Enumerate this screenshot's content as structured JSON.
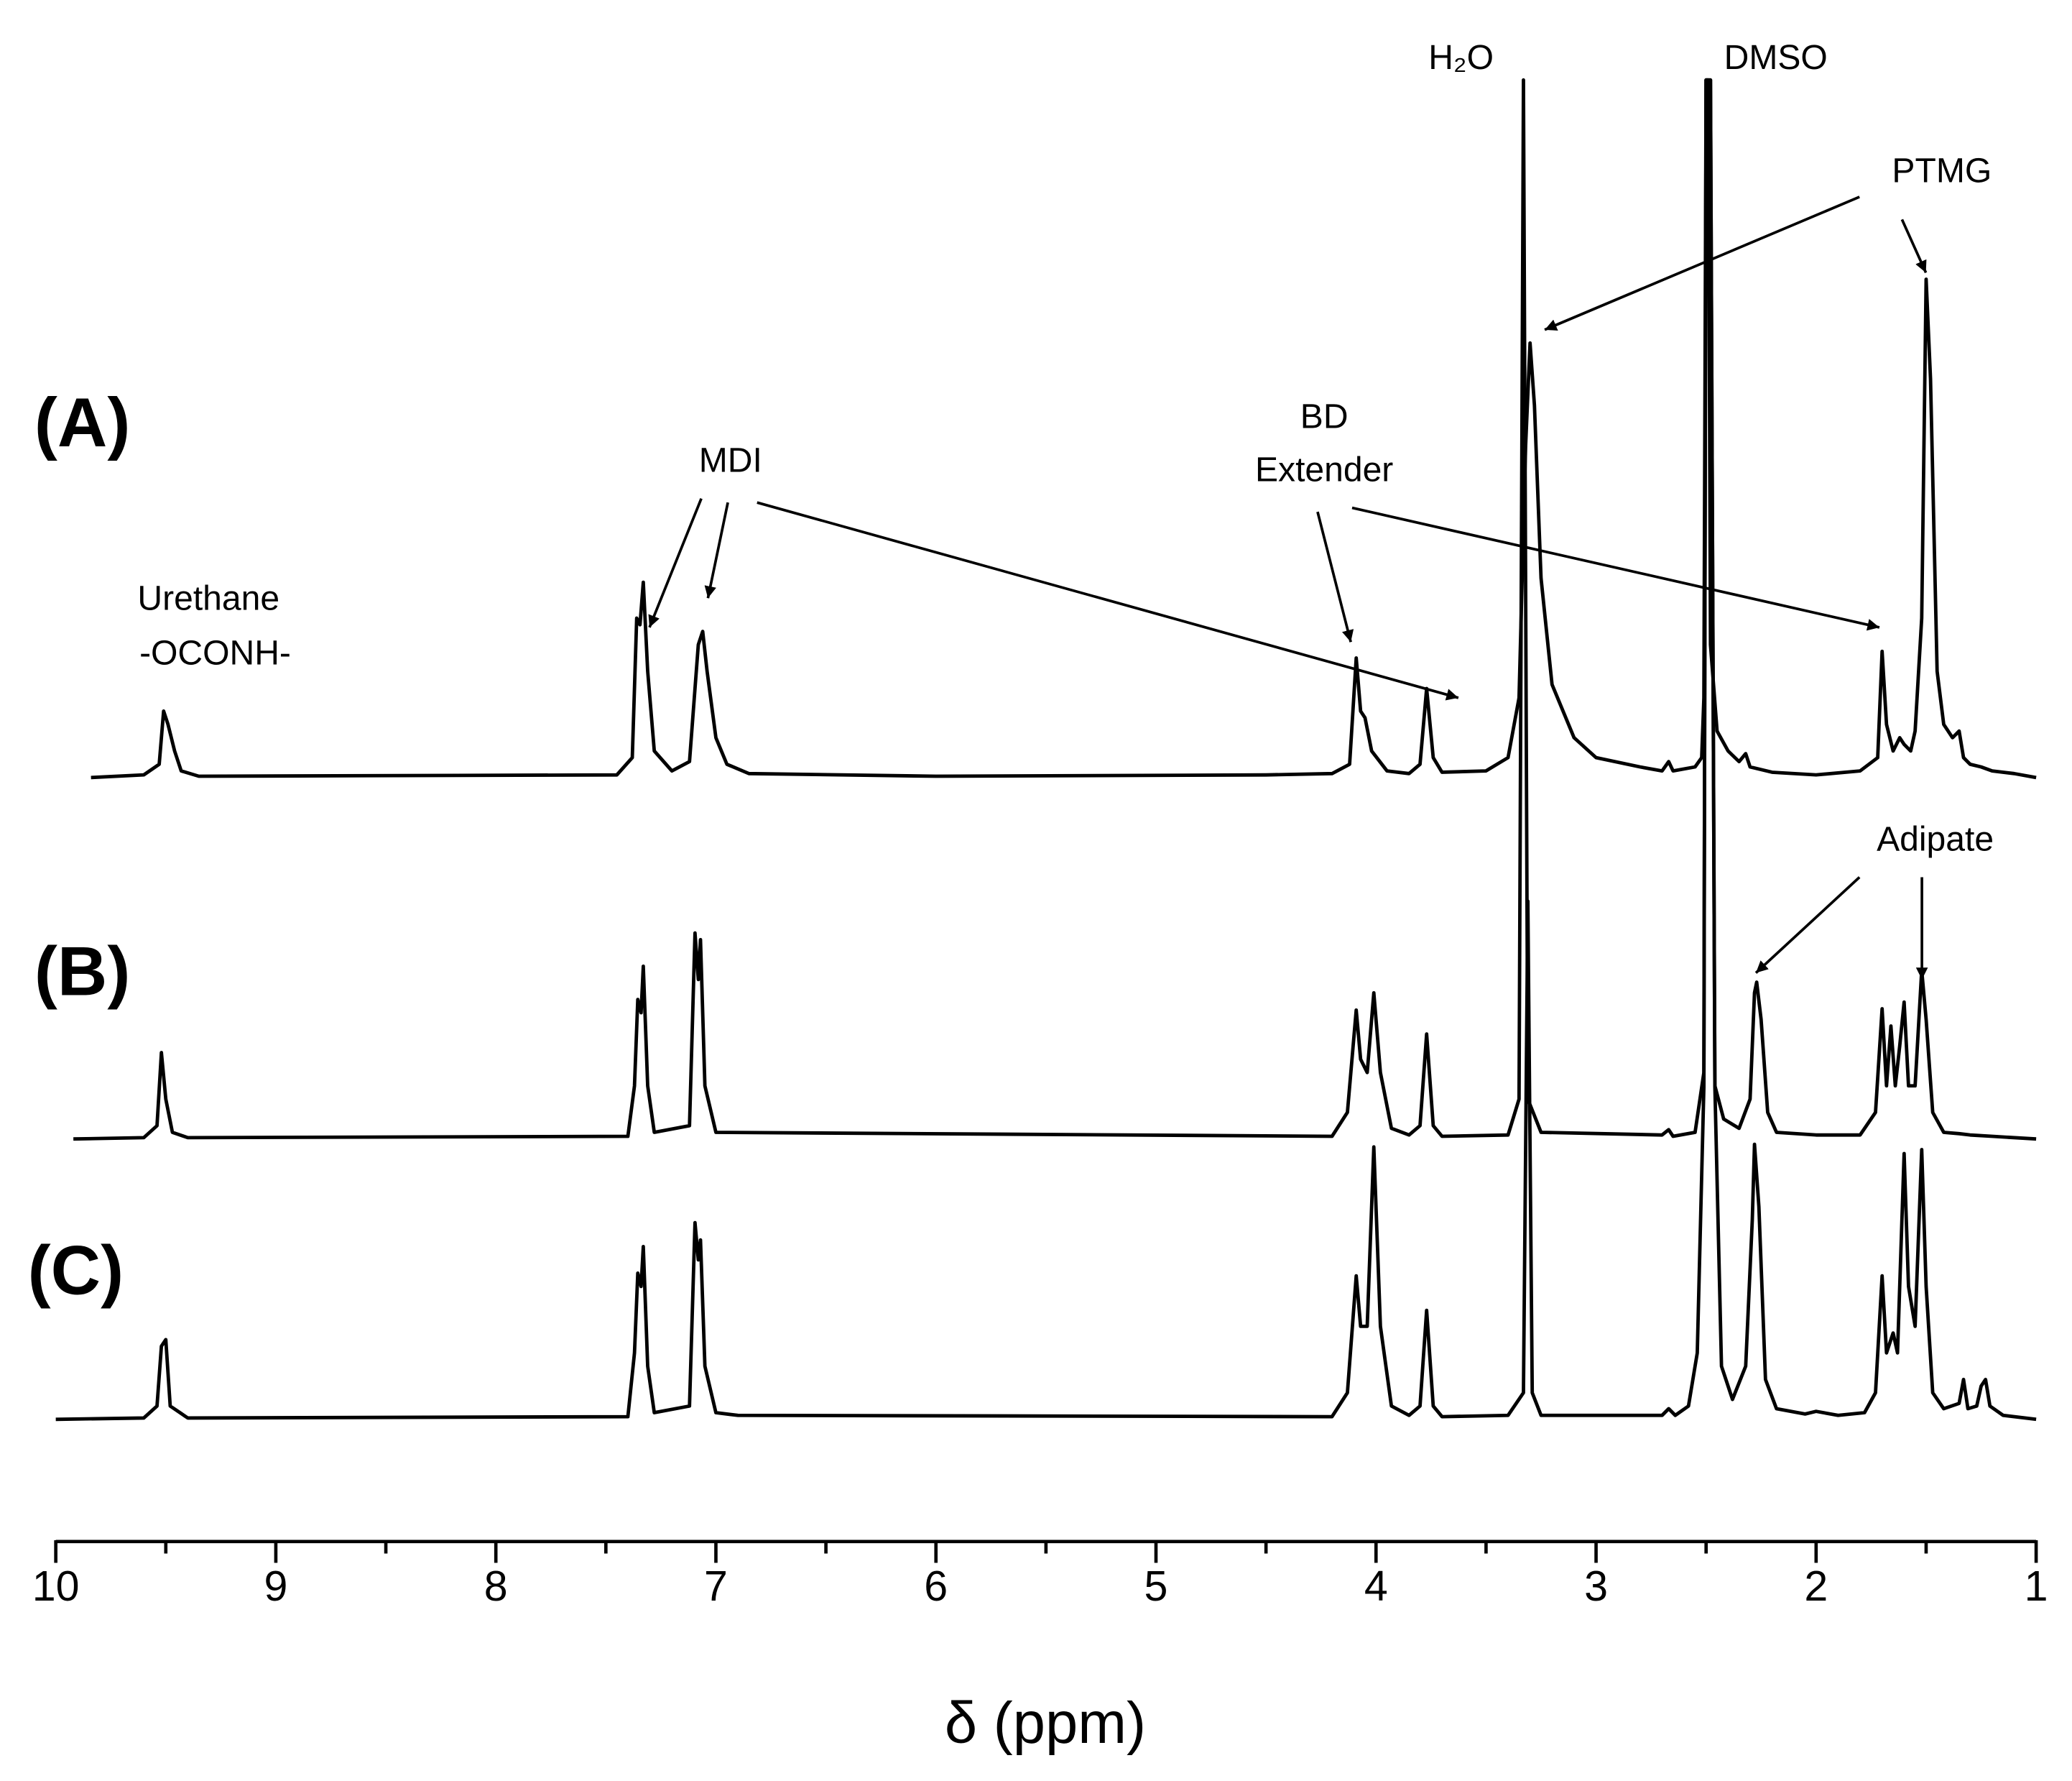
{
  "chart_data": {
    "type": "line",
    "xlabel": "δ (ppm)",
    "xlim": [
      10,
      1
    ],
    "xticks": [
      10,
      9,
      8,
      7,
      6,
      5,
      4,
      3,
      2,
      1
    ],
    "xminorticks": [
      9.5,
      8.5,
      7.5,
      6.5,
      5.5,
      4.5,
      3.5,
      2.5,
      1.5
    ],
    "annotations": [
      "H₂O",
      "DMSO",
      "PTMG",
      "MDI",
      [
        "BD",
        "Extender"
      ],
      [
        "Urethane",
        "-OCONH-"
      ],
      "Adipate"
    ],
    "series": [
      {
        "name": "(A)",
        "color": "#000000",
        "x": [
          9.84,
          9.6,
          9.53,
          9.51,
          9.49,
          9.46,
          9.43,
          9.35,
          7.45,
          7.38,
          7.36,
          7.345,
          7.33,
          7.31,
          7.28,
          7.2,
          7.12,
          7.08,
          7.06,
          7.04,
          7.0,
          6.95,
          6.85,
          6.0,
          4.5,
          4.2,
          4.12,
          4.09,
          4.07,
          4.05,
          4.02,
          3.95,
          3.85,
          3.8,
          3.77,
          3.74,
          3.7,
          3.5,
          3.4,
          3.35,
          3.32,
          3.3,
          3.28,
          3.25,
          3.2,
          3.1,
          3.0,
          2.8,
          2.7,
          2.67,
          2.65,
          2.55,
          2.52,
          2.51,
          2.5,
          2.49,
          2.48,
          2.45,
          2.4,
          2.35,
          2.32,
          2.3,
          2.2,
          2.0,
          1.8,
          1.72,
          1.7,
          1.68,
          1.65,
          1.62,
          1.6,
          1.57,
          1.55,
          1.52,
          1.5,
          1.48,
          1.45,
          1.42,
          1.38,
          1.35,
          1.33,
          1.3,
          1.25,
          1.2,
          1.1,
          1.0
        ],
        "values": [
          0,
          2,
          10,
          50,
          40,
          20,
          5,
          1,
          2,
          15,
          120,
          115,
          147,
          80,
          20,
          5,
          12,
          100,
          110,
          80,
          30,
          10,
          3,
          1,
          2,
          3,
          10,
          90,
          50,
          45,
          20,
          5,
          3,
          10,
          67,
          15,
          4,
          5,
          15,
          60,
          250,
          327,
          280,
          150,
          70,
          30,
          15,
          8,
          5,
          12,
          5,
          8,
          15,
          60,
          525,
          525,
          100,
          35,
          20,
          12,
          18,
          8,
          4,
          2,
          5,
          15,
          95,
          40,
          20,
          30,
          25,
          20,
          35,
          120,
          375,
          300,
          80,
          40,
          30,
          35,
          15,
          10,
          8,
          5,
          3,
          0
        ]
      },
      {
        "name": "(B)",
        "color": "#000000",
        "x": [
          9.92,
          9.6,
          9.54,
          9.52,
          9.5,
          9.47,
          9.4,
          7.4,
          7.37,
          7.355,
          7.34,
          7.33,
          7.31,
          7.28,
          7.12,
          7.095,
          7.08,
          7.07,
          7.05,
          7.0,
          4.2,
          4.13,
          4.09,
          4.07,
          4.04,
          4.01,
          3.98,
          3.93,
          3.85,
          3.8,
          3.77,
          3.74,
          3.7,
          3.4,
          3.35,
          3.33,
          3.31,
          3.25,
          2.7,
          2.67,
          2.65,
          2.55,
          2.51,
          2.5,
          2.48,
          2.46,
          2.42,
          2.35,
          2.3,
          2.28,
          2.27,
          2.25,
          2.22,
          2.18,
          2.0,
          1.8,
          1.73,
          1.7,
          1.68,
          1.66,
          1.64,
          1.62,
          1.6,
          1.58,
          1.55,
          1.52,
          1.5,
          1.47,
          1.42,
          1.35,
          1.3,
          1.2,
          1.0
        ],
        "values": [
          0,
          1,
          10,
          65,
          30,
          5,
          1,
          2,
          40,
          105,
          95,
          130,
          40,
          5,
          10,
          155,
          120,
          150,
          40,
          5,
          2,
          20,
          97,
          60,
          50,
          110,
          50,
          8,
          3,
          10,
          79,
          10,
          2,
          3,
          30,
          797,
          30,
          5,
          3,
          7,
          2,
          5,
          50,
          797,
          797,
          40,
          15,
          8,
          30,
          110,
          118,
          90,
          20,
          5,
          3,
          3,
          20,
          98,
          40,
          85,
          40,
          70,
          103,
          40,
          40,
          127,
          90,
          20,
          5,
          4,
          3,
          2,
          0
        ]
      },
      {
        "name": "(C)",
        "color": "#000000",
        "x": [
          10.0,
          9.6,
          9.54,
          9.52,
          9.5,
          9.48,
          9.4,
          7.4,
          7.37,
          7.355,
          7.34,
          7.33,
          7.31,
          7.28,
          7.12,
          7.095,
          7.08,
          7.07,
          7.05,
          7.0,
          6.9,
          4.2,
          4.13,
          4.09,
          4.07,
          4.04,
          4.01,
          3.98,
          3.93,
          3.85,
          3.8,
          3.77,
          3.74,
          3.7,
          3.4,
          3.33,
          3.31,
          3.29,
          3.25,
          2.7,
          2.67,
          2.64,
          2.58,
          2.54,
          2.51,
          2.5,
          2.48,
          2.46,
          2.43,
          2.38,
          2.32,
          2.29,
          2.28,
          2.26,
          2.23,
          2.18,
          2.05,
          2.0,
          1.9,
          1.78,
          1.73,
          1.7,
          1.68,
          1.65,
          1.63,
          1.6,
          1.58,
          1.55,
          1.52,
          1.5,
          1.47,
          1.42,
          1.35,
          1.33,
          1.31,
          1.27,
          1.25,
          1.23,
          1.21,
          1.15,
          1.0
        ],
        "values": [
          0,
          1,
          10,
          55,
          60,
          10,
          1,
          2,
          50,
          110,
          100,
          130,
          40,
          5,
          10,
          148,
          120,
          135,
          40,
          5,
          3,
          2,
          20,
          108,
          70,
          70,
          205,
          70,
          10,
          3,
          10,
          82,
          10,
          2,
          3,
          20,
          390,
          20,
          3,
          3,
          8,
          3,
          10,
          50,
          250,
          1008,
          1008,
          250,
          40,
          15,
          40,
          150,
          207,
          160,
          30,
          8,
          4,
          6,
          3,
          5,
          20,
          108,
          50,
          65,
          50,
          200,
          100,
          70,
          203,
          100,
          20,
          8,
          12,
          30,
          8,
          10,
          25,
          30,
          10,
          3,
          0
        ]
      }
    ]
  }
}
